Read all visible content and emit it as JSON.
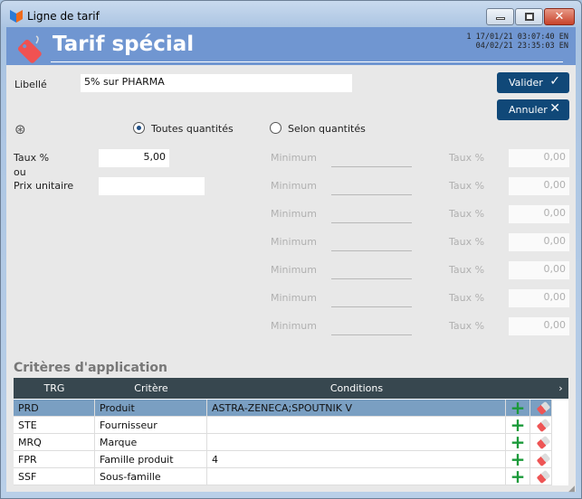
{
  "window": {
    "title": "Ligne de tarif"
  },
  "header": {
    "title": "Tarif spécial",
    "stamp_line1": "1  17/01/21 03:07:40  EN",
    "stamp_line2": "04/02/21 23:35:03  EN"
  },
  "form": {
    "libelle_label": "Libellé",
    "libelle_value": "5% sur PHARMA",
    "valider": "Valider",
    "annuler": "Annuler",
    "radio_all": "Toutes quantités",
    "radio_qty": "Selon quantités",
    "radio_selected": "Toutes quantités",
    "taux_label": "Taux %",
    "ou_label": "ou",
    "prix_label": "Prix unitaire",
    "taux_value": "5,00",
    "prix_value": ""
  },
  "tiers": [
    {
      "min_label": "Minimum",
      "min_value": "",
      "taux_label": "Taux %",
      "taux_value": "0,00"
    },
    {
      "min_label": "Minimum",
      "min_value": "",
      "taux_label": "Taux %",
      "taux_value": "0,00"
    },
    {
      "min_label": "Minimum",
      "min_value": "",
      "taux_label": "Taux %",
      "taux_value": "0,00"
    },
    {
      "min_label": "Minimum",
      "min_value": "",
      "taux_label": "Taux %",
      "taux_value": "0,00"
    },
    {
      "min_label": "Minimum",
      "min_value": "",
      "taux_label": "Taux %",
      "taux_value": "0,00"
    },
    {
      "min_label": "Minimum",
      "min_value": "",
      "taux_label": "Taux %",
      "taux_value": "0,00"
    },
    {
      "min_label": "Minimum",
      "min_value": "",
      "taux_label": "Taux %",
      "taux_value": "0,00"
    }
  ],
  "criteria": {
    "title": "Critères d'application",
    "columns": [
      "TRG",
      "Critère",
      "Conditions"
    ],
    "rows": [
      [
        "PRD",
        "Produit",
        "ASTRA-ZENECA;SPOUTNIK V"
      ],
      [
        "STE",
        "Fournisseur",
        ""
      ],
      [
        "MRQ",
        "Marque",
        ""
      ],
      [
        "FPR",
        "Famille produit",
        "4"
      ],
      [
        "SSF",
        "Sous-famille",
        ""
      ]
    ]
  },
  "colors": {
    "header": "#7096d1",
    "button": "#104878",
    "table_header": "#37474f",
    "selected_row": "#7a9fc2"
  }
}
